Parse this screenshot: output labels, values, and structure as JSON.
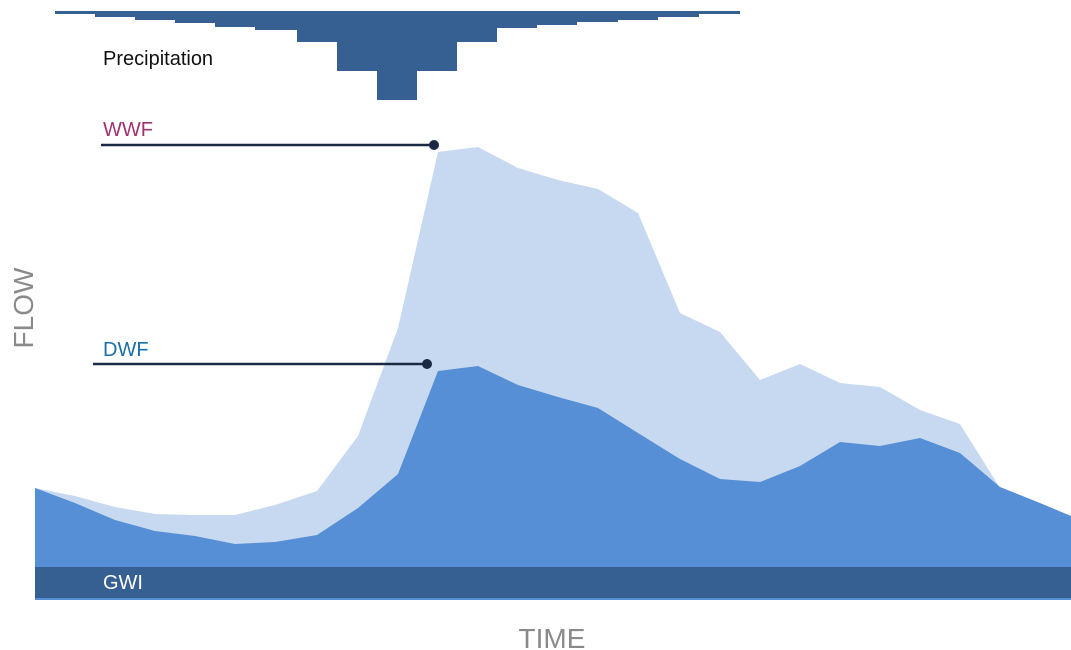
{
  "labels": {
    "precipitation": "Precipitation",
    "wwf": "WWF",
    "dwf": "DWF",
    "gwi": "GWI",
    "y_axis": "FLOW",
    "x_axis": "TIME"
  },
  "colors": {
    "wwf_area": "#c7d9f0",
    "dwf_area": "#568fd5",
    "gwi_band": "#365f92",
    "precip": "#365f92",
    "wwf_text": "#a0336e",
    "dwf_text": "#1d6fa6",
    "leader_line": "#1a2a44",
    "axis_text": "#8a8a8a"
  }
}
